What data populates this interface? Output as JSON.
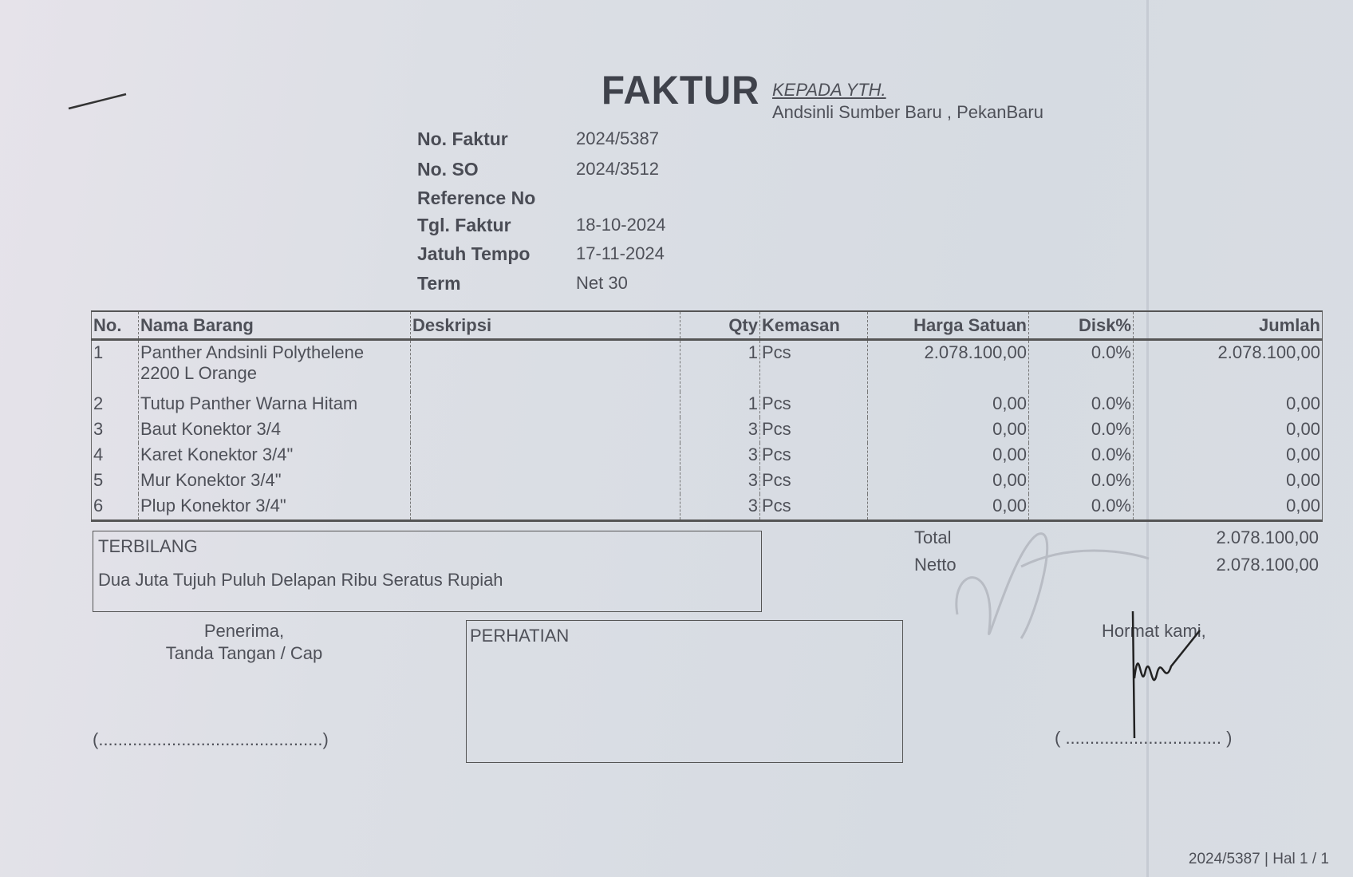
{
  "header": {
    "title": "FAKTUR",
    "to_label": "KEPADA YTH.",
    "to_name": "Andsinli Sumber Baru , PekanBaru"
  },
  "info": [
    {
      "label": "No. Faktur",
      "value": "2024/5387"
    },
    {
      "label": "No. SO",
      "value": "2024/3512"
    },
    {
      "label": "Reference No",
      "value": ""
    },
    {
      "label": "Tgl. Faktur",
      "value": "18-10-2024"
    },
    {
      "label": "Jatuh Tempo",
      "value": "17-11-2024"
    },
    {
      "label": "Term",
      "value": "Net 30"
    }
  ],
  "table": {
    "columns": [
      "No.",
      "Nama Barang",
      "Deskripsi",
      "Qty",
      "Kemasan",
      "Harga Satuan",
      "Disk%",
      "Jumlah"
    ],
    "rows": [
      {
        "no": "1",
        "name": "Panther Andsinli Polythelene",
        "name2": "2200 L Orange",
        "desc": "",
        "qty": "1",
        "unit": "Pcs",
        "price": "2.078.100,00",
        "disc": "0.0%",
        "total": "2.078.100,00"
      },
      {
        "no": "2",
        "name": "Tutup Panther Warna Hitam",
        "desc": "",
        "qty": "1",
        "unit": "Pcs",
        "price": "0,00",
        "disc": "0.0%",
        "total": "0,00"
      },
      {
        "no": "3",
        "name": "Baut Konektor 3/4",
        "desc": "",
        "qty": "3",
        "unit": "Pcs",
        "price": "0,00",
        "disc": "0.0%",
        "total": "0,00"
      },
      {
        "no": "4",
        "name": "Karet Konektor 3/4\"",
        "desc": "",
        "qty": "3",
        "unit": "Pcs",
        "price": "0,00",
        "disc": "0.0%",
        "total": "0,00"
      },
      {
        "no": "5",
        "name": "Mur Konektor 3/4\"",
        "desc": "",
        "qty": "3",
        "unit": "Pcs",
        "price": "0,00",
        "disc": "0.0%",
        "total": "0,00"
      },
      {
        "no": "6",
        "name": "Plup Konektor 3/4\"",
        "desc": "",
        "qty": "3",
        "unit": "Pcs",
        "price": "0,00",
        "disc": "0.0%",
        "total": "0,00"
      }
    ]
  },
  "terbilang": {
    "label": "TERBILANG",
    "text": "Dua Juta Tujuh Puluh Delapan Ribu Seratus Rupiah"
  },
  "totals": {
    "total_label": "Total",
    "total": "2.078.100,00",
    "netto_label": "Netto",
    "netto": "2.078.100,00"
  },
  "signatures": {
    "receiver_1": "Penerima,",
    "receiver_2": "Tanda Tangan / Cap",
    "receiver_line": "(..............................................)",
    "sender": "Hormat kami,",
    "sender_line": "( ................................ )"
  },
  "perhatian": {
    "label": "PERHATIAN"
  },
  "footer": {
    "page": "2024/5387 | Hal 1 / 1"
  }
}
